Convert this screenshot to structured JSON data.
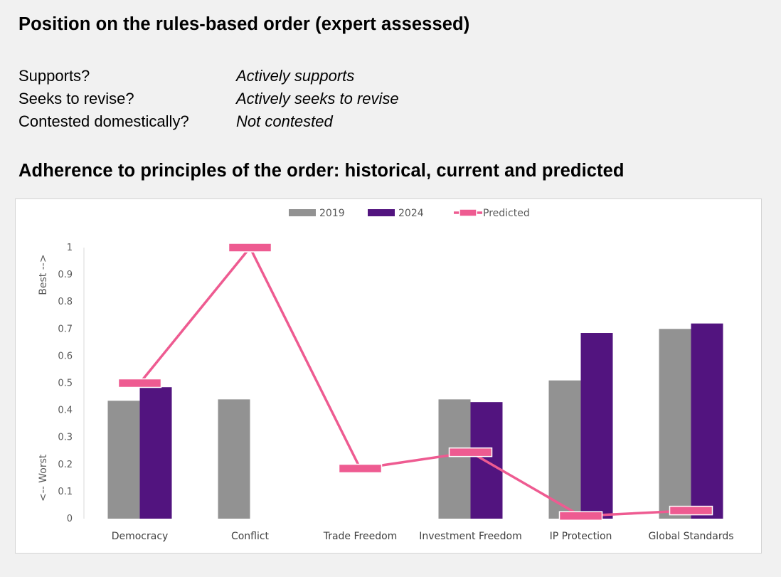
{
  "position": {
    "title": "Position on the rules-based order (expert assessed)",
    "rows": [
      {
        "label": "Supports?",
        "value": "Actively supports"
      },
      {
        "label": "Seeks to revise?",
        "value": "Actively seeks to revise"
      },
      {
        "label": "Contested domestically?",
        "value": "Not contested"
      }
    ]
  },
  "adherence": {
    "title": "Adherence to principles of the order: historical, current and predicted"
  },
  "chart_data": {
    "type": "bar",
    "categories": [
      "Democracy",
      "Conflict",
      "Trade Freedom",
      "Investment Freedom",
      "IP Protection",
      "Global Standards"
    ],
    "series": [
      {
        "name": "2019",
        "kind": "bar",
        "color": "#929292",
        "values": [
          0.435,
          0.44,
          null,
          0.44,
          0.51,
          0.7
        ]
      },
      {
        "name": "2024",
        "kind": "bar",
        "color": "#52147f",
        "values": [
          0.485,
          null,
          null,
          0.43,
          0.685,
          0.72
        ]
      },
      {
        "name": "Predicted",
        "kind": "line-marker",
        "color": "#ee5b91",
        "values": [
          0.5,
          1.0,
          0.185,
          0.245,
          0.01,
          0.03
        ]
      }
    ],
    "ylim": [
      0,
      1
    ],
    "yticks": [
      "0",
      "0.1",
      "0.2",
      "0.3",
      "0.4",
      "0.5",
      "0.6",
      "0.7",
      "0.8",
      "0.9",
      "1"
    ],
    "ylabel_top": "Best -->",
    "ylabel_bottom": "<-- Worst",
    "legend_position": "top-center",
    "grid": false
  }
}
